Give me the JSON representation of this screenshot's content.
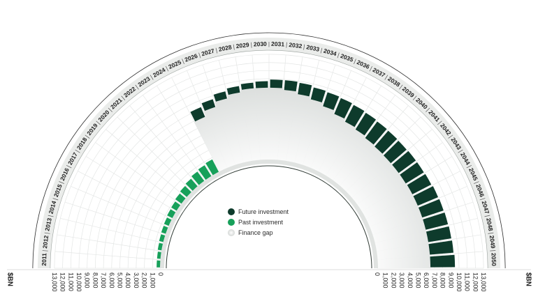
{
  "chart_data": {
    "type": "radial-bar",
    "unit_label": "$BN",
    "years": [
      "2011",
      "2012",
      "2013",
      "2014",
      "2015",
      "2016",
      "2017",
      "2018",
      "2019",
      "2020",
      "2021",
      "2022",
      "2023",
      "2024",
      "2025",
      "2026",
      "2027",
      "2028",
      "2029",
      "2030",
      "2031",
      "2032",
      "2033",
      "2034",
      "2035",
      "2036",
      "2037",
      "2038",
      "2039",
      "2040",
      "2041",
      "2042",
      "2043",
      "2044",
      "2045",
      "2046",
      "2047",
      "2048",
      "2049",
      "2050"
    ],
    "left_axis_ticks": [
      "13,000",
      "12,000",
      "11,000",
      "10,000",
      "9,000",
      "8,000",
      "7,000",
      "6,000",
      "5,000",
      "4,000",
      "3,000",
      "2,000",
      "1,000",
      "0"
    ],
    "right_axis_ticks": [
      "0",
      "1,000",
      "2,000",
      "3,000",
      "4,000",
      "5,000",
      "6,000",
      "7,000",
      "8,000",
      "9,000",
      "10,000",
      "11,000",
      "12,000",
      "13,000"
    ],
    "axis_range": [
      0,
      13000
    ],
    "past_investment": [
      500,
      500,
      550,
      600,
      650,
      700,
      800,
      850,
      1000,
      1150,
      1300,
      1500,
      1650,
      1800
    ],
    "future_investment": [
      {
        "year": "2025",
        "start": 6900,
        "end": 8200
      },
      {
        "year": "2026",
        "start": 7600,
        "end": 8600
      },
      {
        "year": "2027",
        "start": 8200,
        "end": 9100
      },
      {
        "year": "2028",
        "start": 8600,
        "end": 9400
      },
      {
        "year": "2029",
        "start": 8900,
        "end": 9600
      },
      {
        "year": "2030",
        "start": 8900,
        "end": 9700
      },
      {
        "year": "2031",
        "start": 8900,
        "end": 9900
      },
      {
        "year": "2032",
        "start": 8700,
        "end": 9900
      },
      {
        "year": "2033",
        "start": 8400,
        "end": 9800
      },
      {
        "year": "2034",
        "start": 8100,
        "end": 9600
      },
      {
        "year": "2035",
        "start": 7700,
        "end": 9500
      },
      {
        "year": "2036",
        "start": 7300,
        "end": 9400
      },
      {
        "year": "2037",
        "start": 7000,
        "end": 9300
      },
      {
        "year": "2038",
        "start": 6800,
        "end": 9200
      },
      {
        "year": "2039",
        "start": 6600,
        "end": 9100
      },
      {
        "year": "2040",
        "start": 6500,
        "end": 9050
      },
      {
        "year": "2041",
        "start": 6450,
        "end": 9000
      },
      {
        "year": "2042",
        "start": 6450,
        "end": 9050
      },
      {
        "year": "2043",
        "start": 6450,
        "end": 9050
      },
      {
        "year": "2044",
        "start": 6500,
        "end": 9100
      },
      {
        "year": "2045",
        "start": 6500,
        "end": 9200
      },
      {
        "year": "2046",
        "start": 6500,
        "end": 9250
      },
      {
        "year": "2047",
        "start": 6500,
        "end": 9300
      },
      {
        "year": "2048",
        "start": 6500,
        "end": 9350
      },
      {
        "year": "2049",
        "start": 6500,
        "end": 9400
      },
      {
        "year": "2050",
        "start": 6500,
        "end": 9500
      }
    ],
    "legend": [
      "Future investment",
      "Past investment",
      "Finance gap"
    ],
    "colors": {
      "future": "#0e3b2c",
      "past": "#17a05a",
      "gap": "#d3d6d4",
      "grid": "#e4e6e5",
      "text": "#1f1f1f",
      "band": "#eaecea"
    }
  }
}
